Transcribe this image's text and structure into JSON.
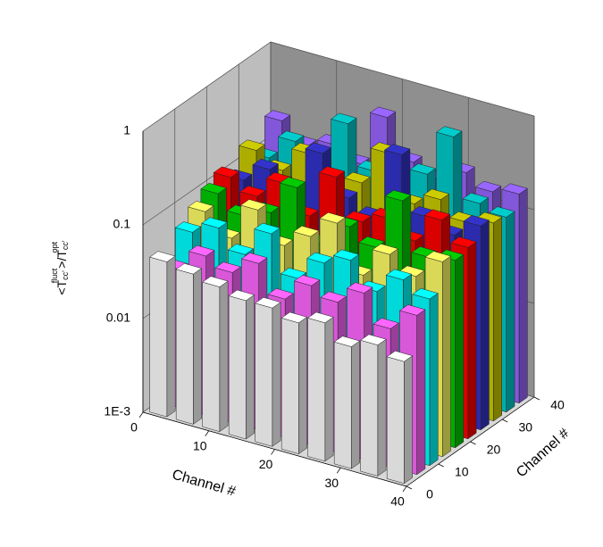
{
  "chart_data": {
    "type": "bar3d",
    "xlabel": "Channel #",
    "zlabel": "Channel #",
    "ylabel_parts": [
      "<T",
      "cc'",
      "fluct",
      ">/T",
      "cc'",
      "opt"
    ],
    "x": [
      2,
      6,
      10,
      14,
      18,
      22,
      26,
      30,
      34,
      38
    ],
    "z": [
      2,
      6,
      10,
      14,
      18,
      22,
      26,
      30,
      34,
      38
    ],
    "xlim": [
      0,
      40
    ],
    "xticks": [
      0,
      10,
      20,
      30,
      40
    ],
    "zlim": [
      0,
      40
    ],
    "zticks": [
      0,
      10,
      20,
      30,
      40
    ],
    "ylim": [
      0.001,
      1
    ],
    "log_y": true,
    "grid": true,
    "yticks": [
      {
        "value": 0.001,
        "label": "1E-3"
      },
      0.01,
      0.1,
      1
    ],
    "series": [
      {
        "color": "#ffffff",
        "values": [
          0.045,
          0.04,
          0.035,
          0.03,
          0.03,
          0.025,
          0.03,
          0.02,
          0.025,
          0.02
        ]
      },
      {
        "color": "#ff66ff",
        "values": [
          0.03,
          0.05,
          0.04,
          0.06,
          0.03,
          0.05,
          0.04,
          0.06,
          0.03,
          0.05
        ]
      },
      {
        "color": "#00ffff",
        "values": [
          0.06,
          0.08,
          0.05,
          0.1,
          0.04,
          0.07,
          0.09,
          0.05,
          0.08,
          0.06
        ]
      },
      {
        "color": "#ffff66",
        "values": [
          0.08,
          0.05,
          0.12,
          0.06,
          0.09,
          0.15,
          0.05,
          0.1,
          0.07,
          0.12
        ]
      },
      {
        "color": "#00cc00",
        "values": [
          0.1,
          0.07,
          0.09,
          0.2,
          0.06,
          0.11,
          0.08,
          0.3,
          0.09,
          0.1
        ]
      },
      {
        "color": "#ff0000",
        "values": [
          0.12,
          0.09,
          0.15,
          0.08,
          0.25,
          0.1,
          0.13,
          0.09,
          0.18,
          0.11
        ]
      },
      {
        "color": "#3333cc",
        "values": [
          0.09,
          0.14,
          0.1,
          0.3,
          0.12,
          0.09,
          0.5,
          0.13,
          0.1,
          0.15
        ]
      },
      {
        "color": "#cccc00",
        "values": [
          0.15,
          0.11,
          0.2,
          0.1,
          0.14,
          0.35,
          0.12,
          0.16,
          0.11,
          0.13
        ]
      },
      {
        "color": "#00cccc",
        "values": [
          0.1,
          0.18,
          0.12,
          0.4,
          0.15,
          0.12,
          0.2,
          0.6,
          0.14,
          0.12
        ]
      },
      {
        "color": "#9966ff",
        "values": [
          0.2,
          0.13,
          0.16,
          0.12,
          0.45,
          0.18,
          0.14,
          0.2,
          0.15,
          0.17
        ]
      }
    ]
  }
}
